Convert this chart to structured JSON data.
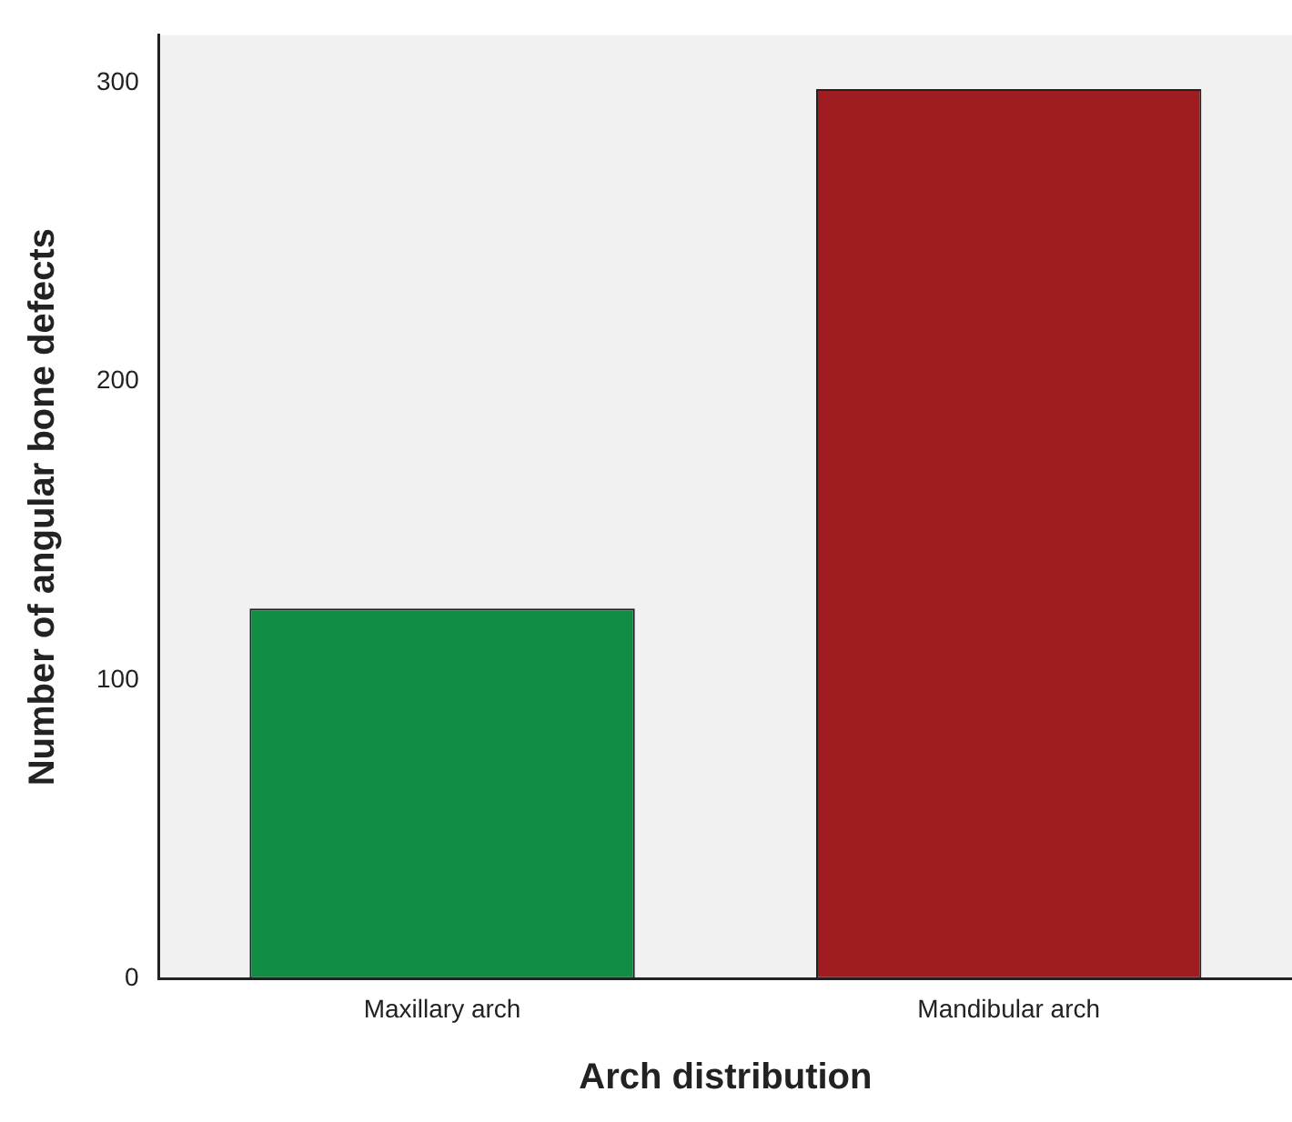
{
  "chart_data": {
    "type": "bar",
    "xlabel": "Arch distribution",
    "ylabel": "Number of angular bone defects",
    "categories": [
      "Maxillary arch",
      "Mandibular arch"
    ],
    "values": [
      124,
      298
    ],
    "colors": [
      "#118c44",
      "#9f1c20"
    ],
    "ylim": [
      0,
      316
    ],
    "yticks": [
      0,
      100,
      200,
      300
    ],
    "grid": false,
    "legend": false
  }
}
